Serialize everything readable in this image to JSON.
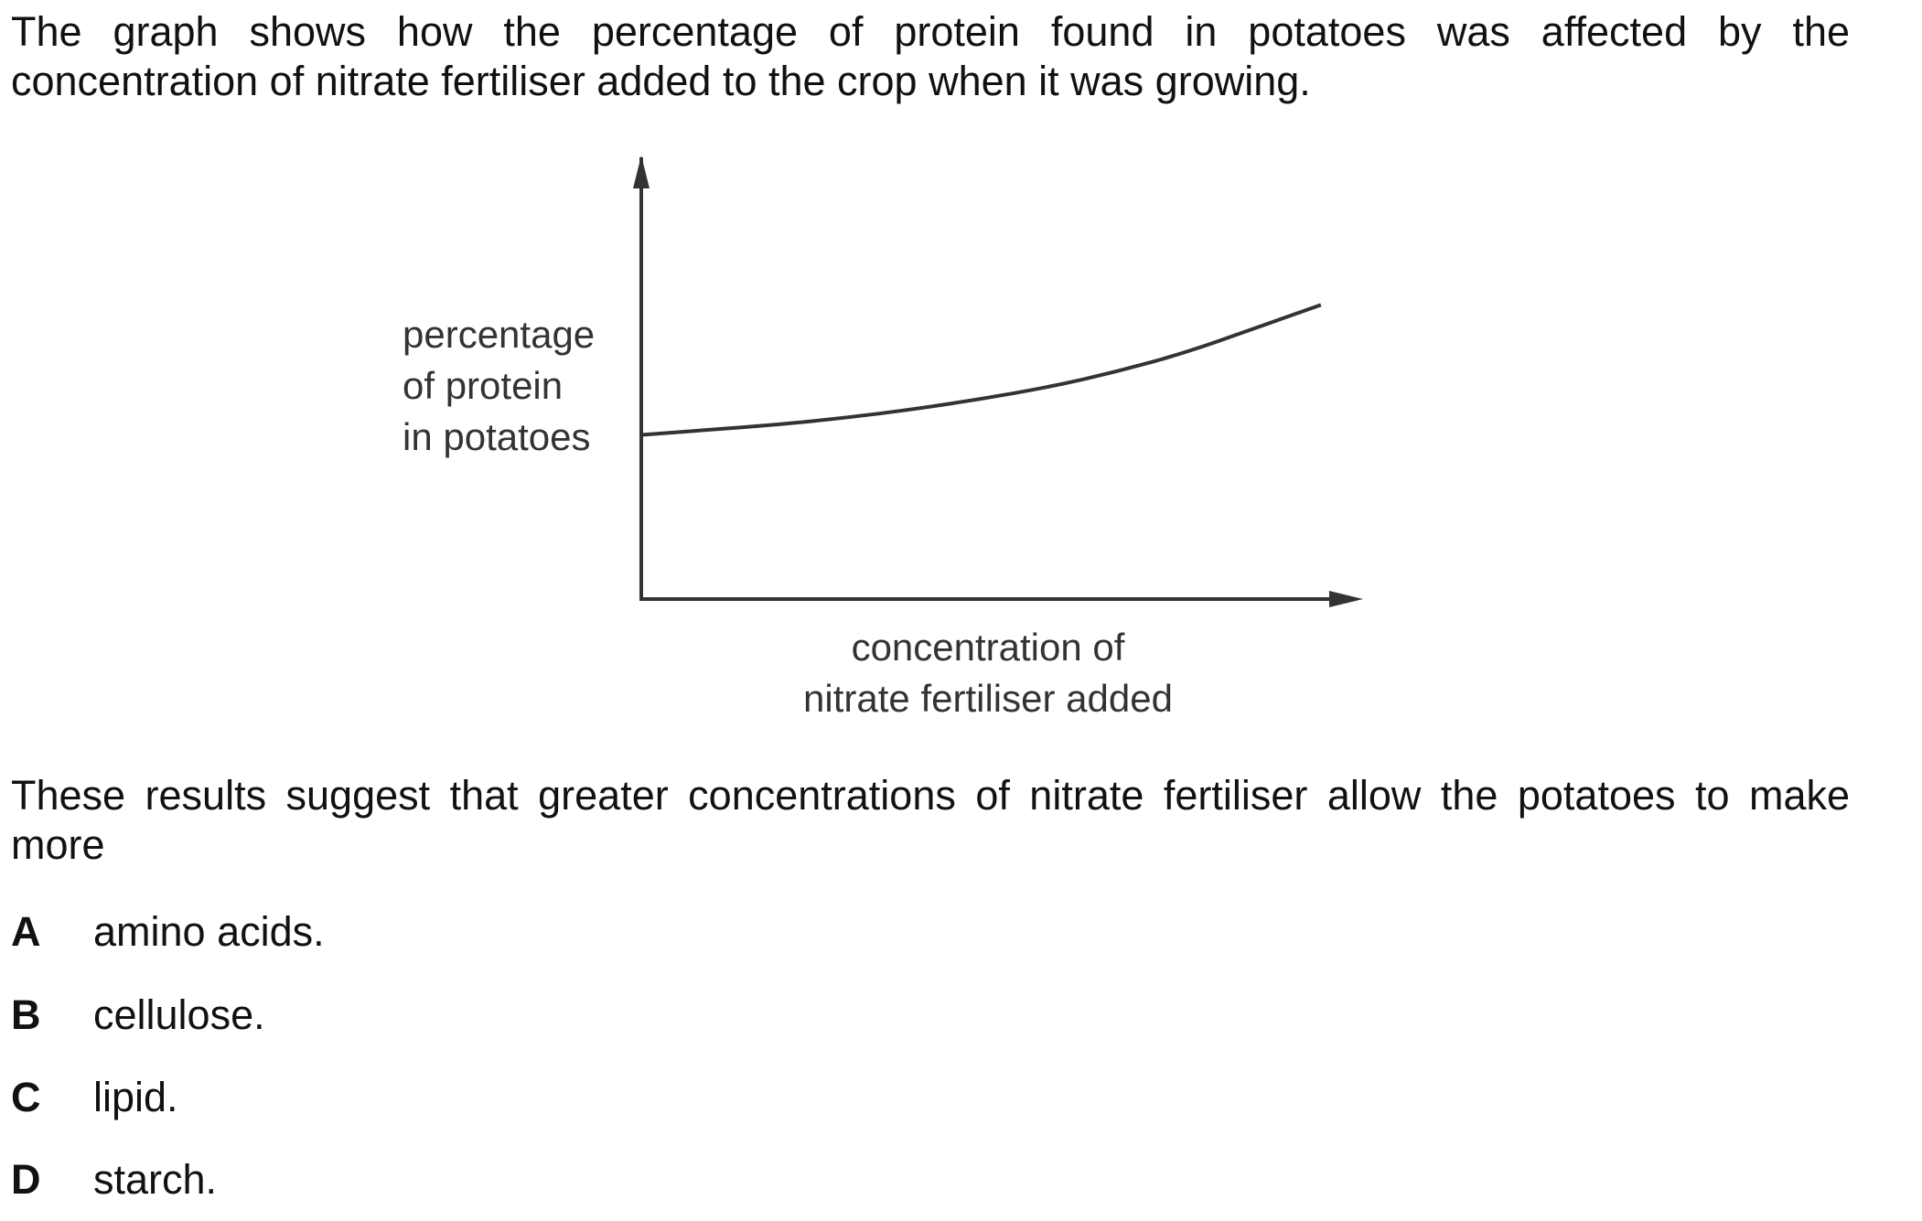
{
  "intro": {
    "line1": "The graph shows how the percentage of protein found in potatoes was affected by the",
    "line2": "concentration of nitrate fertiliser added to the crop when it was growing."
  },
  "chart_data": {
    "type": "line",
    "title": "",
    "ylabel_lines": [
      "percentage",
      "of protein",
      "in potatoes"
    ],
    "xlabel_lines": [
      "concentration of",
      "nitrate fertiliser added"
    ],
    "ylabel": "percentage of protein in potatoes",
    "xlabel": "concentration of nitrate fertiliser added",
    "axis_ticks": false,
    "grid": false,
    "trend": "increasing, curving upward",
    "series": [
      {
        "x": [
          0,
          0.1,
          0.2,
          0.3,
          0.4,
          0.5,
          0.6,
          0.7,
          0.8,
          0.9,
          1.0
        ],
        "y": [
          0.48,
          0.495,
          0.51,
          0.53,
          0.555,
          0.585,
          0.62,
          0.665,
          0.72,
          0.79,
          0.86
        ]
      }
    ],
    "xlim": [
      0,
      1.05
    ],
    "ylim": [
      0,
      1.15
    ]
  },
  "question": {
    "line1": "These results suggest that greater concentrations of nitrate fertiliser allow the potatoes to make",
    "line2": "more"
  },
  "options": [
    {
      "letter": "A",
      "text": "amino acids."
    },
    {
      "letter": "B",
      "text": "cellulose."
    },
    {
      "letter": "C",
      "text": "lipid."
    },
    {
      "letter": "D",
      "text": "starch."
    }
  ]
}
